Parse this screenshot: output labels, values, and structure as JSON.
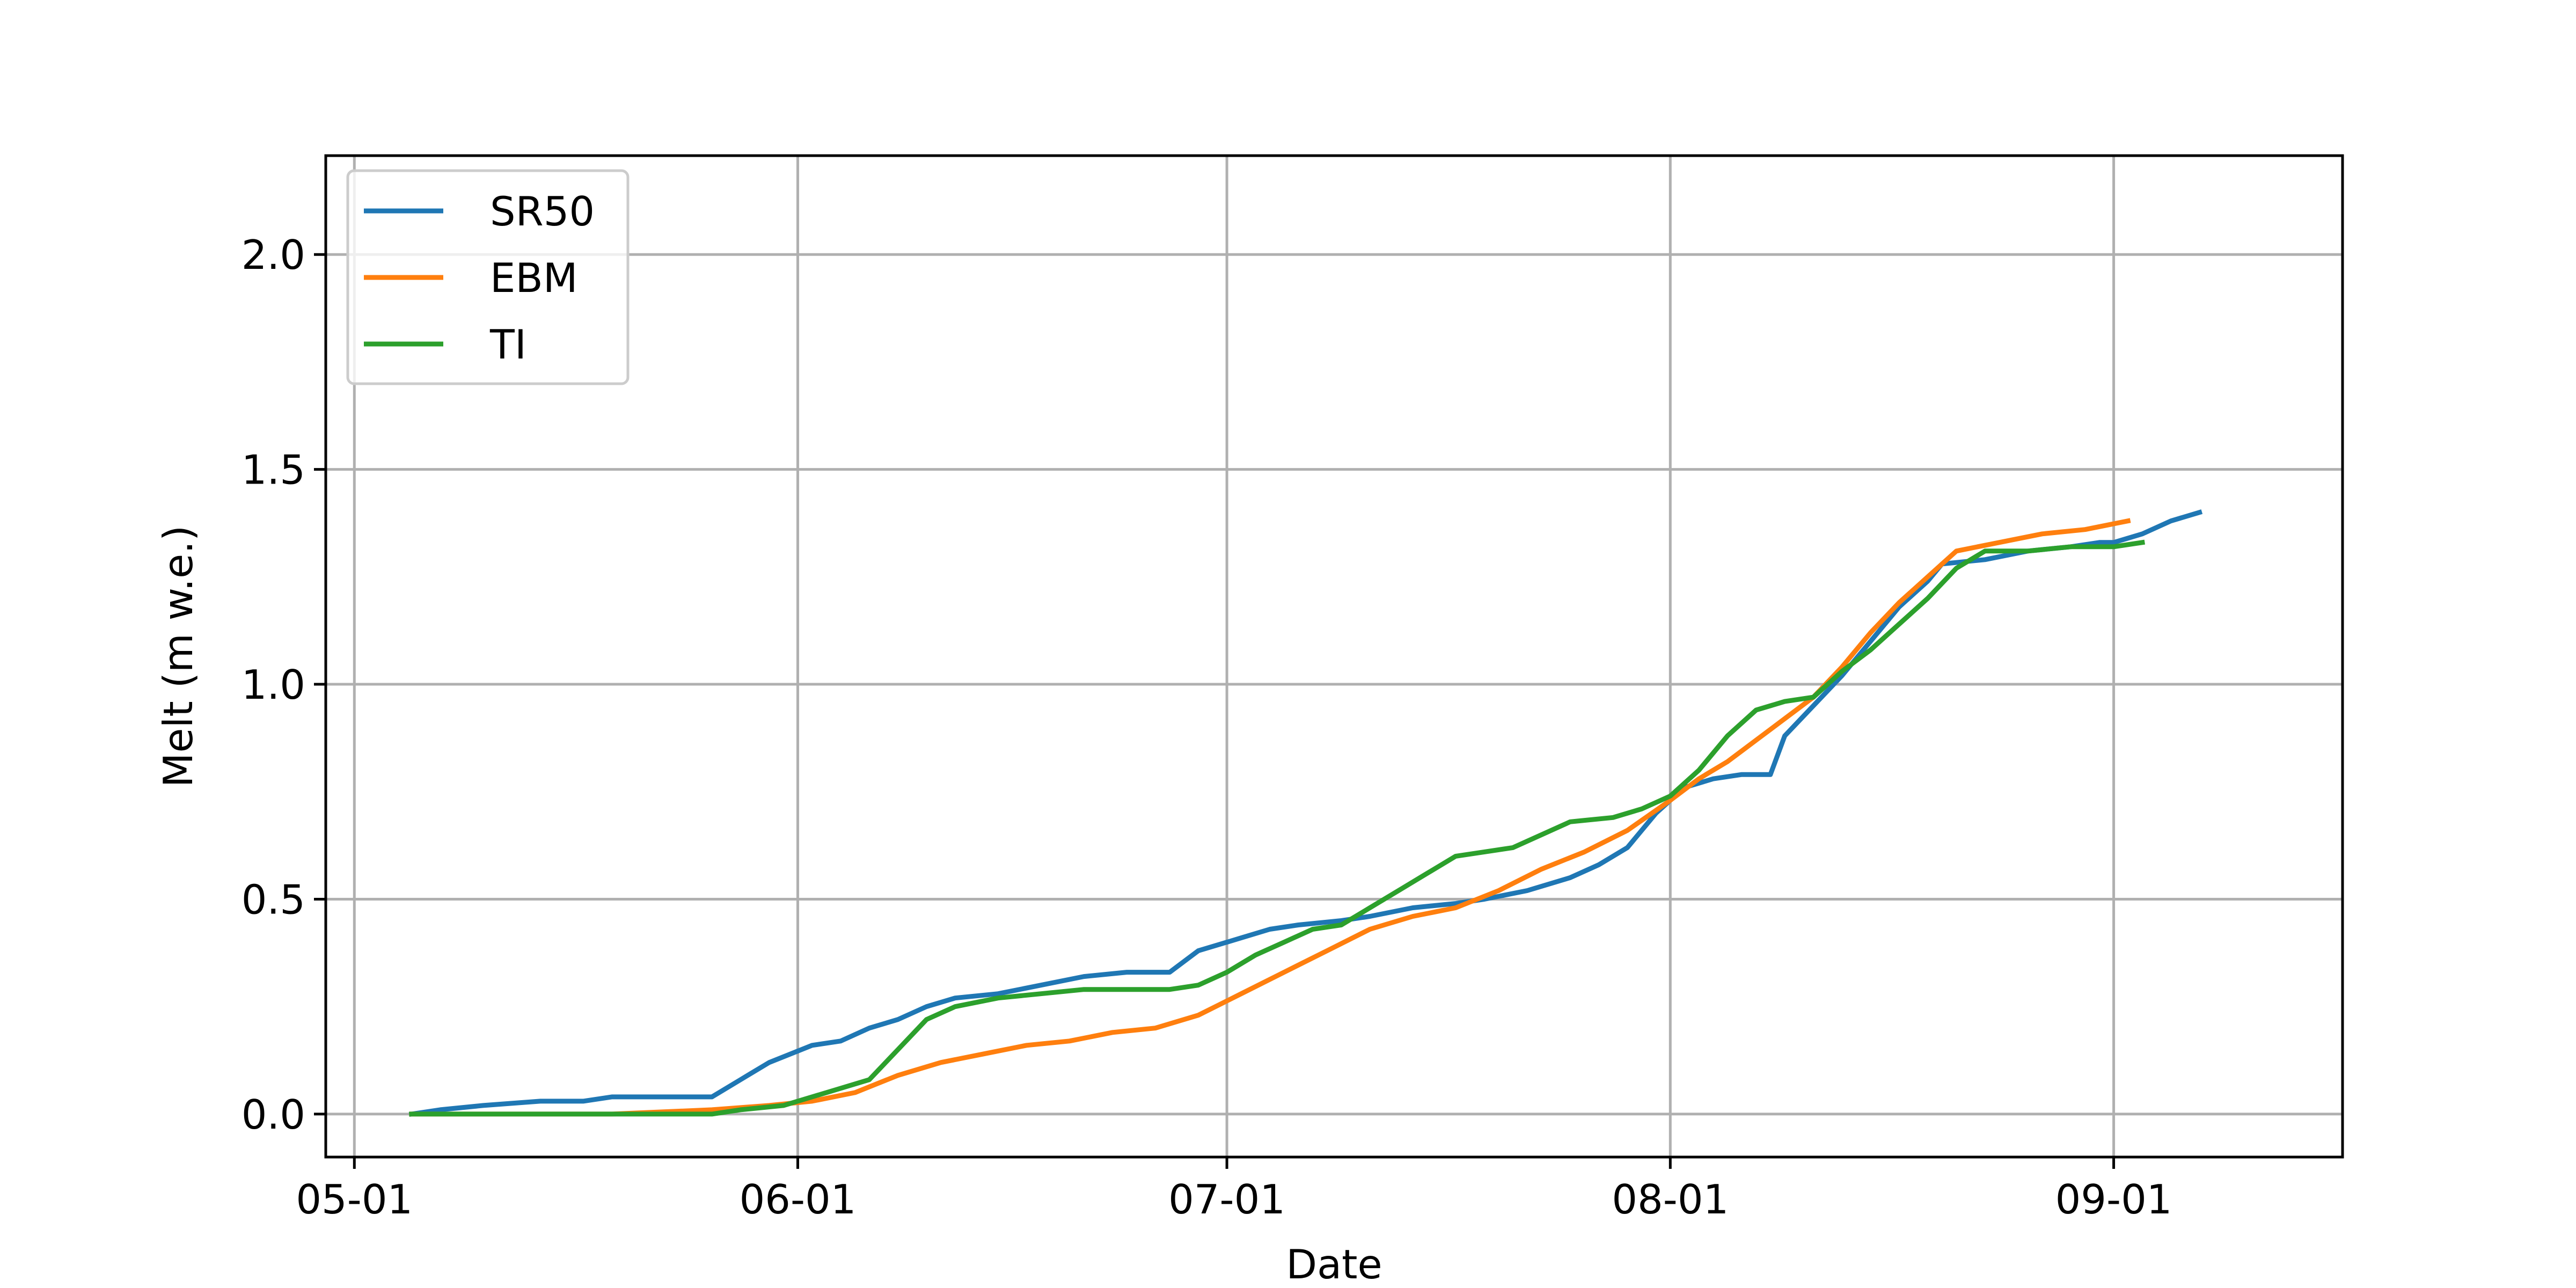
{
  "chart_data": {
    "type": "line",
    "title": "",
    "xlabel": "Date",
    "ylabel": "Melt (m w.e.)",
    "x_type": "date",
    "year": "",
    "x_range": [
      "04-29",
      "09-17"
    ],
    "ylim": [
      -0.1,
      2.23
    ],
    "x_ticks": [
      "05-01",
      "06-01",
      "07-01",
      "08-01",
      "09-01"
    ],
    "y_ticks": [
      "0.0",
      "0.5",
      "1.0",
      "1.5",
      "2.0"
    ],
    "grid": true,
    "legend_position": "top-left",
    "series": [
      {
        "name": "SR50",
        "color": "#1f77b4",
        "points": [
          [
            "05-05",
            0.0
          ],
          [
            "05-07",
            0.01
          ],
          [
            "05-10",
            0.02
          ],
          [
            "05-14",
            0.03
          ],
          [
            "05-17",
            0.03
          ],
          [
            "05-19",
            0.04
          ],
          [
            "05-22",
            0.04
          ],
          [
            "05-26",
            0.04
          ],
          [
            "05-28",
            0.08
          ],
          [
            "05-30",
            0.12
          ],
          [
            "06-02",
            0.16
          ],
          [
            "06-04",
            0.17
          ],
          [
            "06-06",
            0.2
          ],
          [
            "06-08",
            0.22
          ],
          [
            "06-10",
            0.25
          ],
          [
            "06-12",
            0.27
          ],
          [
            "06-15",
            0.28
          ],
          [
            "06-18",
            0.3
          ],
          [
            "06-21",
            0.32
          ],
          [
            "06-24",
            0.33
          ],
          [
            "06-27",
            0.33
          ],
          [
            "06-29",
            0.38
          ],
          [
            "07-02",
            0.41
          ],
          [
            "07-04",
            0.43
          ],
          [
            "07-06",
            0.44
          ],
          [
            "07-09",
            0.45
          ],
          [
            "07-11",
            0.46
          ],
          [
            "07-14",
            0.48
          ],
          [
            "07-17",
            0.49
          ],
          [
            "07-19",
            0.5
          ],
          [
            "07-22",
            0.52
          ],
          [
            "07-25",
            0.55
          ],
          [
            "07-27",
            0.58
          ],
          [
            "07-29",
            0.62
          ],
          [
            "07-31",
            0.7
          ],
          [
            "08-02",
            0.76
          ],
          [
            "08-04",
            0.78
          ],
          [
            "08-06",
            0.79
          ],
          [
            "08-08",
            0.79
          ],
          [
            "08-09",
            0.88
          ],
          [
            "08-11",
            0.95
          ],
          [
            "08-13",
            1.02
          ],
          [
            "08-15",
            1.1
          ],
          [
            "08-17",
            1.18
          ],
          [
            "08-19",
            1.24
          ],
          [
            "08-20",
            1.28
          ],
          [
            "08-23",
            1.29
          ],
          [
            "08-26",
            1.31
          ],
          [
            "08-29",
            1.32
          ],
          [
            "09-01",
            1.33
          ],
          [
            "09-03",
            1.35
          ],
          [
            "09-05",
            1.38
          ],
          [
            "09-07",
            1.4
          ],
          [
            "08-31",
            1.33
          ],
          [
            "09-02",
            1.34
          ]
        ]
      },
      {
        "name": "EBM",
        "color": "#ff7f0e",
        "points": [
          [
            "05-05",
            0.0
          ],
          [
            "05-12",
            0.0
          ],
          [
            "05-19",
            0.0
          ],
          [
            "05-26",
            0.01
          ],
          [
            "05-30",
            0.02
          ],
          [
            "06-02",
            0.03
          ],
          [
            "06-05",
            0.05
          ],
          [
            "06-08",
            0.09
          ],
          [
            "06-11",
            0.12
          ],
          [
            "06-14",
            0.14
          ],
          [
            "06-17",
            0.16
          ],
          [
            "06-20",
            0.17
          ],
          [
            "06-23",
            0.19
          ],
          [
            "06-26",
            0.2
          ],
          [
            "06-29",
            0.23
          ],
          [
            "07-02",
            0.28
          ],
          [
            "07-05",
            0.33
          ],
          [
            "07-08",
            0.38
          ],
          [
            "07-11",
            0.43
          ],
          [
            "07-14",
            0.46
          ],
          [
            "07-17",
            0.48
          ],
          [
            "07-20",
            0.52
          ],
          [
            "07-23",
            0.57
          ],
          [
            "07-26",
            0.61
          ],
          [
            "07-29",
            0.66
          ],
          [
            "08-01",
            0.73
          ],
          [
            "08-03",
            0.78
          ],
          [
            "08-05",
            0.82
          ],
          [
            "08-07",
            0.87
          ],
          [
            "08-09",
            0.92
          ],
          [
            "08-11",
            0.97
          ],
          [
            "08-13",
            1.04
          ],
          [
            "08-15",
            1.12
          ],
          [
            "08-17",
            1.19
          ],
          [
            "08-19",
            1.25
          ],
          [
            "08-21",
            1.31
          ],
          [
            "08-24",
            1.33
          ],
          [
            "08-27",
            1.35
          ],
          [
            "08-30",
            1.36
          ],
          [
            "09-02",
            1.38
          ]
        ]
      },
      {
        "name": "TI",
        "color": "#2ca02c",
        "points": [
          [
            "05-05",
            0.0
          ],
          [
            "05-12",
            0.0
          ],
          [
            "05-19",
            0.0
          ],
          [
            "05-26",
            0.0
          ],
          [
            "05-28",
            0.01
          ],
          [
            "05-31",
            0.02
          ],
          [
            "06-03",
            0.05
          ],
          [
            "06-06",
            0.08
          ],
          [
            "06-08",
            0.15
          ],
          [
            "06-10",
            0.22
          ],
          [
            "06-12",
            0.25
          ],
          [
            "06-15",
            0.27
          ],
          [
            "06-18",
            0.28
          ],
          [
            "06-21",
            0.29
          ],
          [
            "06-24",
            0.29
          ],
          [
            "06-27",
            0.29
          ],
          [
            "06-29",
            0.3
          ],
          [
            "07-01",
            0.33
          ],
          [
            "07-03",
            0.37
          ],
          [
            "07-05",
            0.4
          ],
          [
            "07-07",
            0.43
          ],
          [
            "07-09",
            0.44
          ],
          [
            "07-11",
            0.48
          ],
          [
            "07-13",
            0.52
          ],
          [
            "07-15",
            0.56
          ],
          [
            "07-17",
            0.6
          ],
          [
            "07-19",
            0.61
          ],
          [
            "07-21",
            0.62
          ],
          [
            "07-23",
            0.65
          ],
          [
            "07-25",
            0.68
          ],
          [
            "07-28",
            0.69
          ],
          [
            "07-30",
            0.71
          ],
          [
            "08-01",
            0.74
          ],
          [
            "08-03",
            0.8
          ],
          [
            "08-05",
            0.88
          ],
          [
            "08-07",
            0.94
          ],
          [
            "08-09",
            0.96
          ],
          [
            "08-11",
            0.97
          ],
          [
            "08-13",
            1.03
          ],
          [
            "08-15",
            1.08
          ],
          [
            "08-17",
            1.14
          ],
          [
            "08-19",
            1.2
          ],
          [
            "08-21",
            1.27
          ],
          [
            "08-23",
            1.31
          ],
          [
            "08-26",
            1.31
          ],
          [
            "08-29",
            1.32
          ],
          [
            "09-01",
            1.32
          ],
          [
            "09-03",
            1.33
          ]
        ]
      }
    ]
  }
}
